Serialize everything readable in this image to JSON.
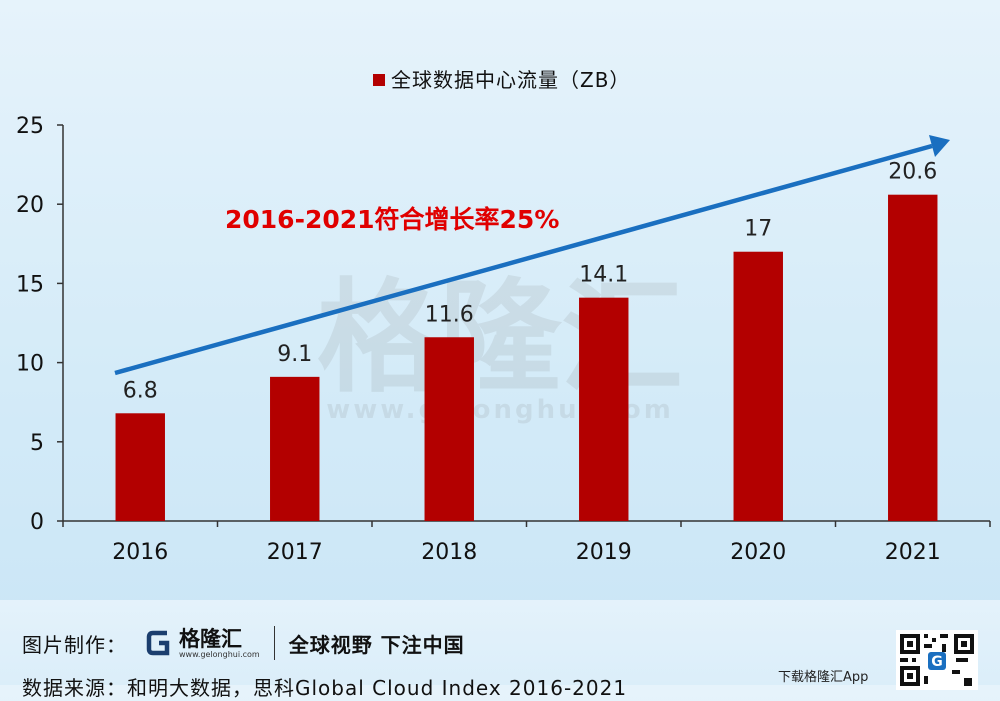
{
  "chart_data": {
    "type": "bar",
    "categories": [
      "2016",
      "2017",
      "2018",
      "2019",
      "2020",
      "2021"
    ],
    "series": [
      {
        "name": "全球数据中心流量（ZB）",
        "values": [
          6.8,
          9.1,
          11.6,
          14.1,
          17,
          20.6
        ]
      }
    ],
    "value_labels": [
      "6.8",
      "9.1",
      "11.6",
      "14.1",
      "17",
      "20.6"
    ],
    "ylim": [
      0,
      25
    ],
    "yticks": [
      "0",
      "5",
      "10",
      "15",
      "20",
      "25"
    ],
    "legend_position": "top-center",
    "grid": false,
    "annotation": "2016-2021符合增长率25%",
    "bar_color": "#b30000",
    "trend_arrow_color": "#1a6fc0",
    "annotation_color": "#e00000"
  },
  "watermark": {
    "name": "格隆汇",
    "url": "www.gelonghui.com"
  },
  "footer": {
    "made_by_label": "图片制作：",
    "logo_name": "格隆汇",
    "logo_url": "www.gelonghui.com",
    "slogan": "全球视野 下注中国",
    "source_text": "数据来源：和明大数据，思科Global Cloud Index 2016-2021",
    "download_label": "下载格隆汇App"
  }
}
